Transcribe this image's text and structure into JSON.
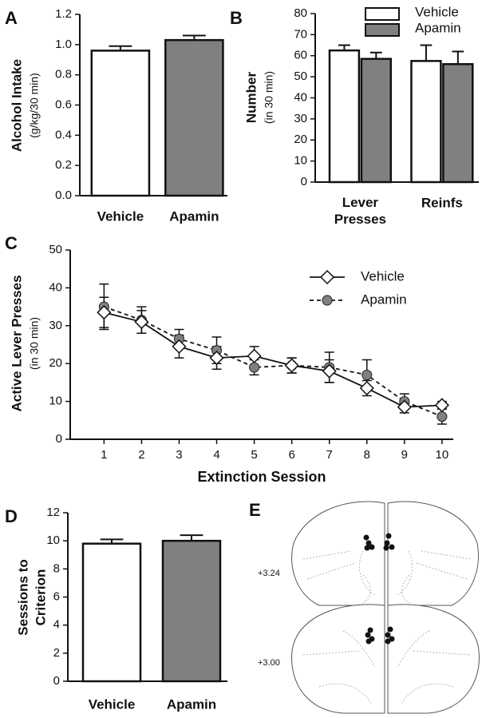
{
  "chart_data": [
    {
      "panel": "A",
      "type": "bar",
      "y_label": [
        "Alcohol Intake",
        "(g/kg/30 min)"
      ],
      "categories": [
        "Vehicle",
        "Apamin"
      ],
      "values": [
        0.96,
        1.03
      ],
      "errors": [
        0.03,
        0.03
      ],
      "colors": [
        "#ffffff",
        "#808080"
      ],
      "ylim": [
        0,
        1.2
      ],
      "yticks": [
        {
          "value": 0,
          "label": "0.0"
        },
        0.2,
        0.4,
        0.6,
        0.8,
        {
          "value": 1,
          "label": "1.0"
        },
        1.2
      ]
    },
    {
      "panel": "B",
      "type": "bar",
      "y_label": [
        "Number",
        "(in 30 min)"
      ],
      "categories": [
        "Lever Presses",
        "Reinfs"
      ],
      "series": [
        {
          "name": "Vehicle",
          "color": "#ffffff",
          "values": [
            62.5,
            57.5
          ],
          "errors": [
            2.5,
            7.5
          ]
        },
        {
          "name": "Apamin",
          "color": "#808080",
          "values": [
            58.5,
            56
          ],
          "errors": [
            3,
            6
          ]
        }
      ],
      "ylim": [
        0,
        80
      ],
      "yticks": [
        0,
        10,
        20,
        30,
        40,
        50,
        60,
        70,
        80
      ],
      "legend": "upper right"
    },
    {
      "panel": "C",
      "type": "line",
      "x_label": "Extinction Session",
      "y_label": [
        "Active Lever Presses",
        "(in 30 min)"
      ],
      "x": [
        1,
        2,
        3,
        4,
        5,
        6,
        7,
        8,
        9,
        10
      ],
      "series": [
        {
          "name": "Vehicle",
          "color": "#ffffff",
          "marker": "diamond",
          "linestyle": "solid",
          "values": [
            33.5,
            31,
            24.5,
            21.5,
            22,
            19.5,
            18,
            13.5,
            8.5,
            9
          ],
          "errors": [
            4,
            3,
            3,
            3,
            2.5,
            2,
            3,
            2,
            1.5,
            1
          ]
        },
        {
          "name": "Apamin",
          "color": "#808080",
          "marker": "circle",
          "linestyle": "dashed",
          "values": [
            35,
            31.5,
            26.5,
            23.5,
            19,
            19.5,
            19,
            17,
            10,
            6
          ],
          "errors": [
            6,
            3.5,
            2.5,
            3.5,
            2,
            2,
            4,
            4,
            2,
            2
          ]
        }
      ],
      "xlim": [
        0.1,
        10.3
      ],
      "xticks": [
        1,
        2,
        3,
        4,
        5,
        6,
        7,
        8,
        9,
        10
      ],
      "ylim": [
        0,
        50
      ],
      "yticks": [
        0,
        10,
        20,
        30,
        40,
        50
      ],
      "legend": "upper right"
    },
    {
      "panel": "D",
      "type": "bar",
      "y_label": [
        "Sessions to",
        "Criterion"
      ],
      "categories": [
        "Vehicle",
        "Apamin"
      ],
      "values": [
        9.8,
        10
      ],
      "errors": [
        0.3,
        0.4
      ],
      "colors": [
        "#ffffff",
        "#808080"
      ],
      "ylim": [
        0,
        12
      ],
      "yticks": [
        0,
        2,
        4,
        6,
        8,
        10,
        12
      ]
    }
  ],
  "diagram": {
    "panel": "E",
    "levels": [
      "+3.24",
      "+3.00"
    ]
  }
}
